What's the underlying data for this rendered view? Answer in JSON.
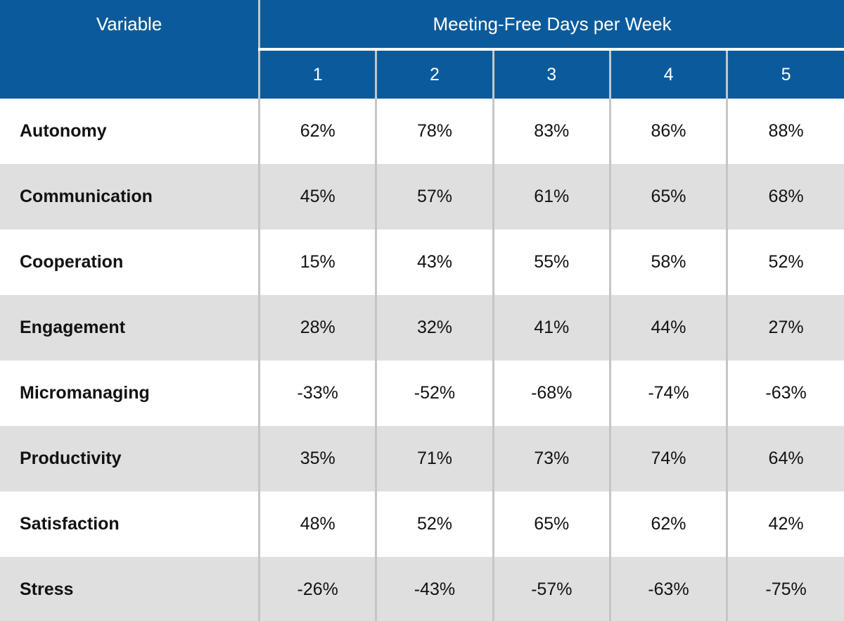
{
  "chart_data": {
    "type": "table",
    "corner_header": "Variable",
    "group_header": "Meeting-Free Days per Week",
    "columns": [
      "1",
      "2",
      "3",
      "4",
      "5"
    ],
    "rows": [
      {
        "label": "Autonomy",
        "values": [
          "62%",
          "78%",
          "83%",
          "86%",
          "88%"
        ]
      },
      {
        "label": "Communication",
        "values": [
          "45%",
          "57%",
          "61%",
          "65%",
          "68%"
        ]
      },
      {
        "label": "Cooperation",
        "values": [
          "15%",
          "43%",
          "55%",
          "58%",
          "52%"
        ]
      },
      {
        "label": "Engagement",
        "values": [
          "28%",
          "32%",
          "41%",
          "44%",
          "27%"
        ]
      },
      {
        "label": "Micromanaging",
        "values": [
          "-33%",
          "-52%",
          "-68%",
          "-74%",
          "-63%"
        ]
      },
      {
        "label": "Productivity",
        "values": [
          "35%",
          "71%",
          "73%",
          "74%",
          "64%"
        ]
      },
      {
        "label": "Satisfaction",
        "values": [
          "48%",
          "52%",
          "65%",
          "62%",
          "42%"
        ]
      },
      {
        "label": "Stress",
        "values": [
          "-26%",
          "-43%",
          "-57%",
          "-63%",
          "-75%"
        ]
      }
    ]
  },
  "colors": {
    "header_blue": "#0b5b9c",
    "header_text": "#ffffff",
    "row_alt_gray": "#dfdfdf",
    "grid_line_gray": "#c6c6c6",
    "header_divider_white": "#ffffff",
    "body_text": "#121212"
  }
}
